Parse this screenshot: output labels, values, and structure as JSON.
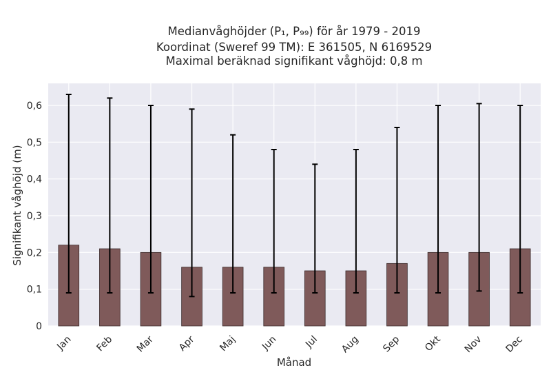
{
  "chart_data": {
    "type": "bar",
    "title_lines": [
      "Medianvåghöjder (P₁, P₉₉) för år 1979 - 2019",
      "Koordinat (Sweref 99 TM): E 361505, N 6169529",
      "Maximal beräknad signifikant våghöjd: 0,8 m"
    ],
    "xlabel": "Månad",
    "ylabel": "Signifikant våghöjd (m)",
    "categories": [
      "Jan",
      "Feb",
      "Mar",
      "Apr",
      "Maj",
      "Jun",
      "Jul",
      "Aug",
      "Sep",
      "Okt",
      "Nov",
      "Dec"
    ],
    "series": [
      {
        "values": [
          0.22,
          0.21,
          0.2,
          0.16,
          0.16,
          0.16,
          0.15,
          0.15,
          0.17,
          0.2,
          0.2,
          0.21
        ],
        "error_low": [
          0.09,
          0.09,
          0.09,
          0.08,
          0.09,
          0.09,
          0.09,
          0.09,
          0.09,
          0.09,
          0.095,
          0.09
        ],
        "error_high": [
          0.63,
          0.62,
          0.6,
          0.59,
          0.52,
          0.48,
          0.44,
          0.48,
          0.54,
          0.6,
          0.605,
          0.6
        ]
      }
    ],
    "yticks": [
      0,
      0.1,
      0.2,
      0.3,
      0.4,
      0.5,
      0.6
    ],
    "ytick_labels": [
      "0",
      "0,1",
      "0,2",
      "0,3",
      "0,4",
      "0,5",
      "0,6"
    ],
    "ylim": [
      0,
      0.66
    ],
    "grid": true,
    "colors": {
      "bar": "#7f5a5a",
      "bar_edge": "#3a2a2a",
      "error": "#000000",
      "plot_bg": "#eaeaf2",
      "grid": "#ffffff"
    }
  }
}
